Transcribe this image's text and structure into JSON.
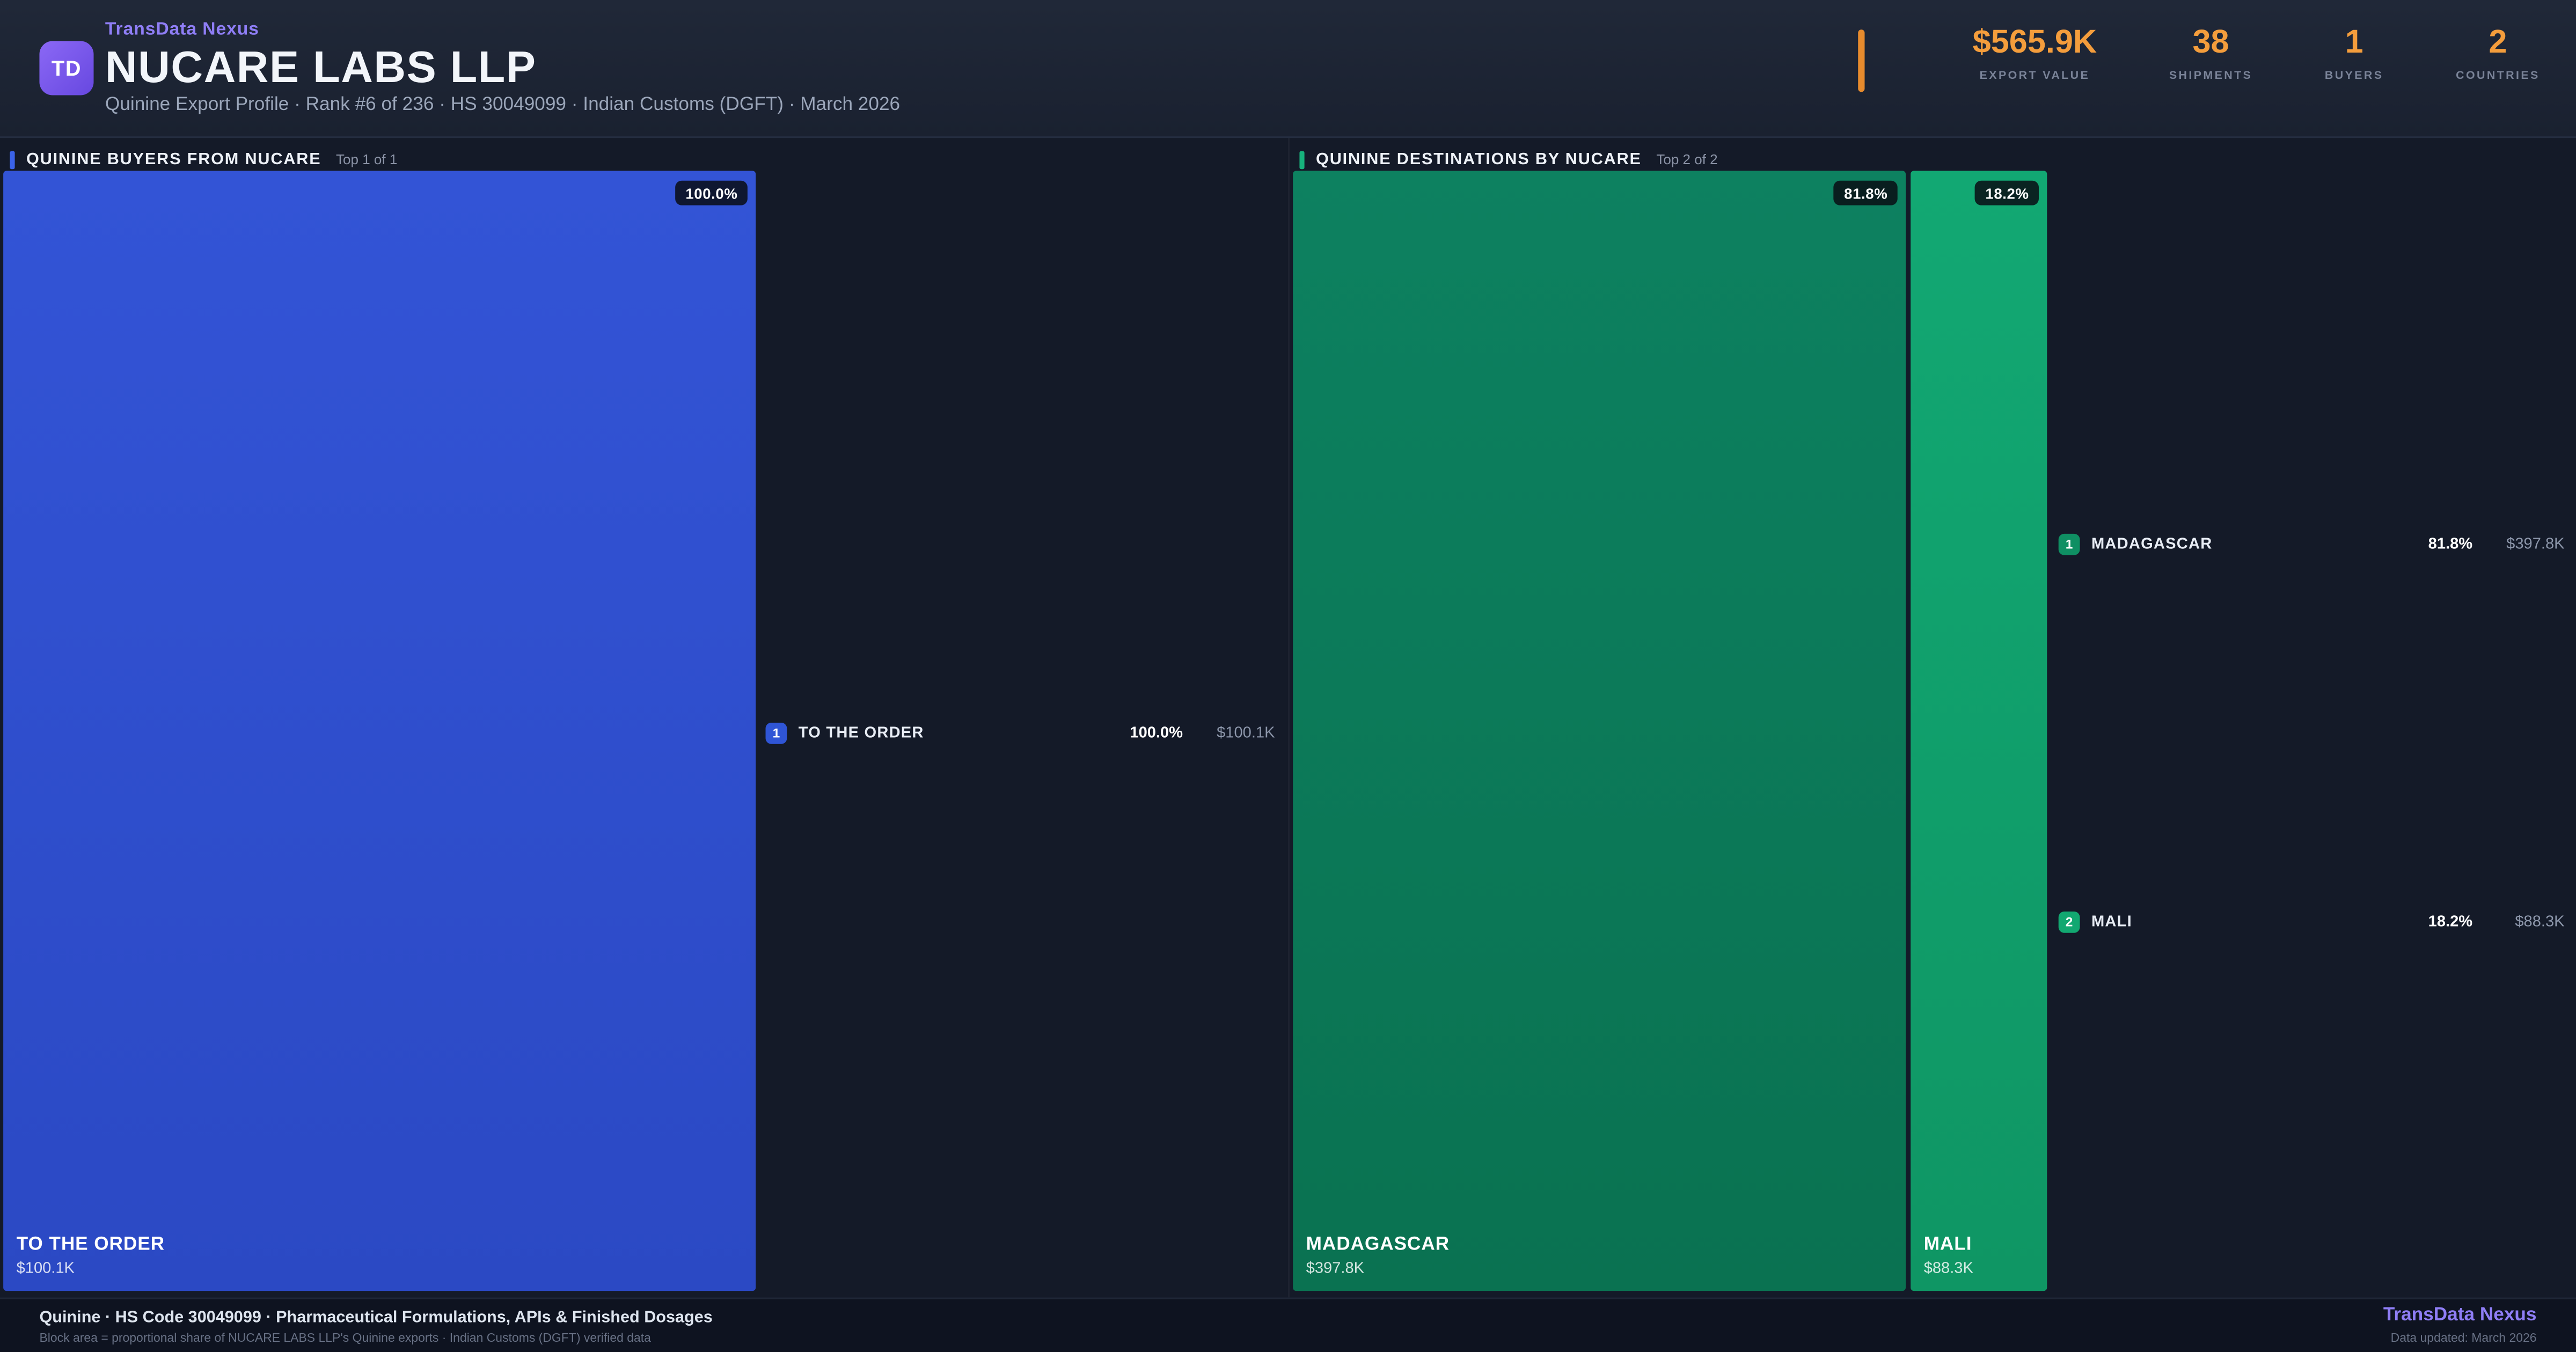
{
  "colors": {
    "page_bg": "#141a28",
    "accent_purple": "#8f7ef6",
    "accent_orange": "#f49d3c",
    "buyer_blue": "#3152d2",
    "destination_green_dark": "#0c7a58",
    "destination_green_light": "#10a06c"
  },
  "header": {
    "logo_text": "TD",
    "brand": "TransData Nexus",
    "company": "NUCARE LABS LLP",
    "subtitle": "Quinine Export Profile · Rank #6 of 236 · HS 30049099 · Indian Customs (DGFT) · March 2026",
    "stats": [
      {
        "value": "$565.9K",
        "label": "EXPORT VALUE"
      },
      {
        "value": "38",
        "label": "SHIPMENTS"
      },
      {
        "value": "1",
        "label": "BUYERS"
      },
      {
        "value": "2",
        "label": "COUNTRIES"
      }
    ]
  },
  "buyers_panel": {
    "title": "QUININE BUYERS FROM NUCARE",
    "top_label": "Top 1 of 1",
    "blocks": [
      {
        "rank": "1",
        "name": "TO THE ORDER",
        "share": "100.0%",
        "value": "$100.1K"
      }
    ]
  },
  "destinations_panel": {
    "title": "QUININE DESTINATIONS BY NUCARE",
    "top_label": "Top 2 of 2",
    "blocks": [
      {
        "rank": "1",
        "name": "MADAGASCAR",
        "share": "81.8%",
        "value": "$397.8K"
      },
      {
        "rank": "2",
        "name": "MALI",
        "share": "18.2%",
        "value": "$88.3K"
      }
    ]
  },
  "footer": {
    "line1": "Quinine · HS Code 30049099 · Pharmaceutical Formulations, APIs & Finished Dosages",
    "line2": "Block area = proportional share of NUCARE LABS LLP's Quinine exports · Indian Customs (DGFT) verified data",
    "brand": "TransData Nexus",
    "updated": "Data updated: March 2026"
  },
  "chart_data": [
    {
      "type": "treemap",
      "title": "QUININE BUYERS FROM NUCARE",
      "subtitle": "Top 1 of 1",
      "items": [
        {
          "label": "TO THE ORDER",
          "value_usd": 100100,
          "share_pct": 100.0,
          "color": "#3152d2"
        }
      ]
    },
    {
      "type": "treemap",
      "title": "QUININE DESTINATIONS BY NUCARE",
      "subtitle": "Top 2 of 2",
      "items": [
        {
          "label": "MADAGASCAR",
          "value_usd": 397800,
          "share_pct": 81.8,
          "color": "#0c7a58"
        },
        {
          "label": "MALI",
          "value_usd": 88300,
          "share_pct": 18.2,
          "color": "#10a06c"
        }
      ]
    }
  ]
}
